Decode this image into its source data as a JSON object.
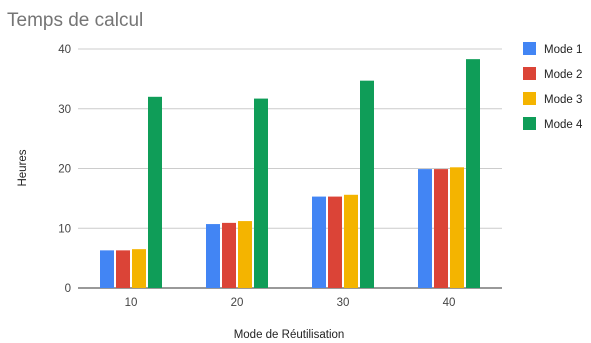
{
  "chart_data": {
    "type": "bar",
    "title": "Temps de calcul",
    "xlabel": "Mode de Réutilisation",
    "ylabel": "Heures",
    "categories": [
      "10",
      "20",
      "30",
      "40"
    ],
    "ylim": [
      0,
      40
    ],
    "yticks": [
      "0",
      "10",
      "20",
      "30",
      "40"
    ],
    "grid": true,
    "legend_position": "right",
    "series": [
      {
        "name": "Mode 1",
        "color": "#4285F4",
        "values": [
          6.3,
          10.7,
          15.3,
          19.9
        ]
      },
      {
        "name": "Mode 2",
        "color": "#DB4437",
        "values": [
          6.3,
          10.9,
          15.3,
          19.9
        ]
      },
      {
        "name": "Mode 3",
        "color": "#F4B400",
        "values": [
          6.5,
          11.2,
          15.6,
          20.2
        ]
      },
      {
        "name": "Mode 4",
        "color": "#0F9D58",
        "values": [
          32.0,
          31.7,
          34.7,
          38.3
        ]
      }
    ]
  }
}
